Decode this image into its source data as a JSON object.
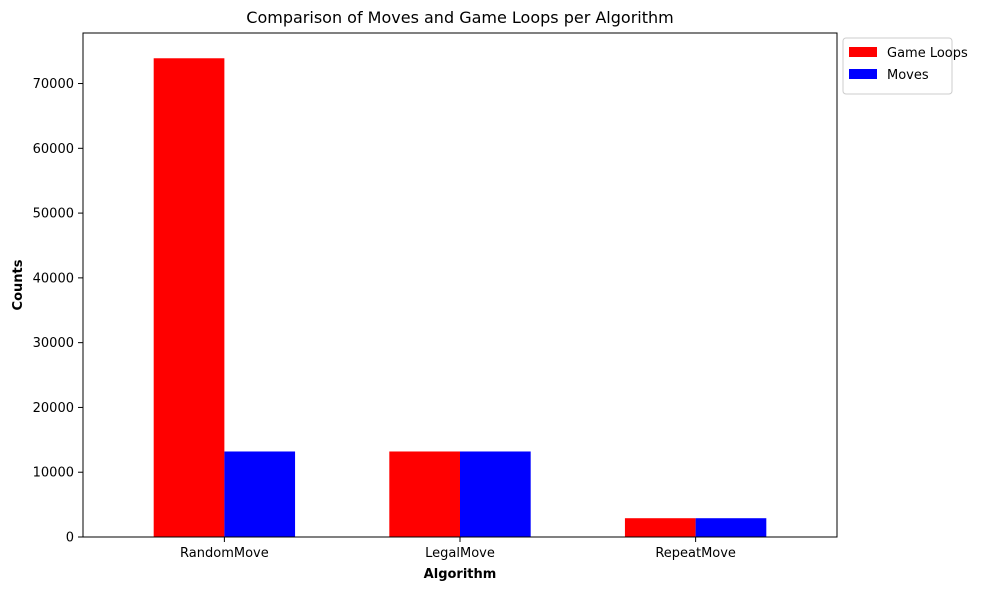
{
  "chart_data": {
    "type": "bar",
    "title": "Comparison of Moves and Game Loops per Algorithm",
    "xlabel": "Algorithm",
    "ylabel": "Counts",
    "categories": [
      "RandomMove",
      "LegalMove",
      "RepeatMove"
    ],
    "series": [
      {
        "name": "Game Loops",
        "color": "#ff0000",
        "values": [
          73900,
          13200,
          2900
        ]
      },
      {
        "name": "Moves",
        "color": "#0000ff",
        "values": [
          13200,
          13200,
          2900
        ]
      }
    ],
    "ylim": [
      0,
      77800
    ],
    "yticks": [
      0,
      10000,
      20000,
      30000,
      40000,
      50000,
      60000,
      70000
    ],
    "grid": false,
    "legend_position": "outside-top-right"
  }
}
